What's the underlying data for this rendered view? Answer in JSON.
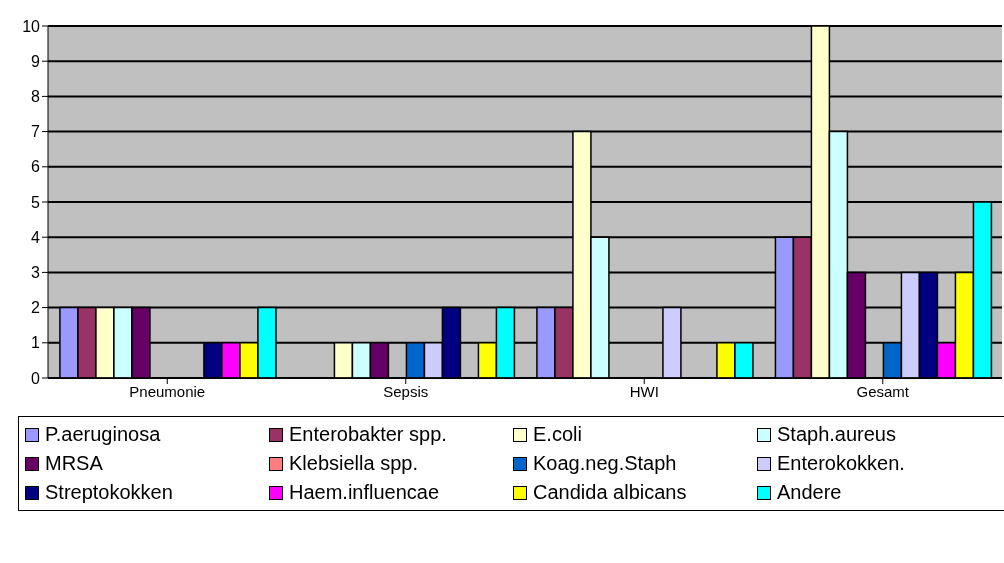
{
  "chart_data": {
    "type": "bar",
    "categories": [
      "Pneumonie",
      "Sepsis",
      "HWI",
      "Gesamt"
    ],
    "series": [
      {
        "name": "P.aeruginosa",
        "color": "#9999ff",
        "values": [
          2,
          0,
          2,
          4
        ]
      },
      {
        "name": "Enterobakter spp.",
        "color": "#993366",
        "values": [
          2,
          0,
          2,
          4
        ]
      },
      {
        "name": "E.coli",
        "color": "#ffffcc",
        "values": [
          2,
          1,
          7,
          10
        ]
      },
      {
        "name": "Staph.aureus",
        "color": "#ccffff",
        "values": [
          2,
          1,
          4,
          7
        ]
      },
      {
        "name": "MRSA",
        "color": "#660066",
        "values": [
          2,
          1,
          0,
          3
        ]
      },
      {
        "name": "Klebsiella spp.",
        "color": "#ff8080",
        "values": [
          0,
          0,
          0,
          0
        ]
      },
      {
        "name": "Koag.neg.Staph",
        "color": "#0066cc",
        "values": [
          0,
          1,
          0,
          1
        ]
      },
      {
        "name": "Enterokokken.",
        "color": "#ccccff",
        "values": [
          0,
          1,
          2,
          3
        ]
      },
      {
        "name": "Streptokokken",
        "color": "#000080",
        "values": [
          1,
          2,
          0,
          3
        ]
      },
      {
        "name": "Haem.influencae",
        "color": "#ff00ff",
        "values": [
          1,
          0,
          0,
          1
        ]
      },
      {
        "name": "Candida albicans",
        "color": "#ffff00",
        "values": [
          1,
          1,
          1,
          3
        ]
      },
      {
        "name": "Andere",
        "color": "#00ffff",
        "values": [
          2,
          2,
          1,
          5
        ]
      }
    ],
    "ylim": [
      0,
      10
    ],
    "yticks": [
      0,
      1,
      2,
      3,
      4,
      5,
      6,
      7,
      8,
      9,
      10
    ],
    "grid": "y",
    "legend": "bottom"
  }
}
